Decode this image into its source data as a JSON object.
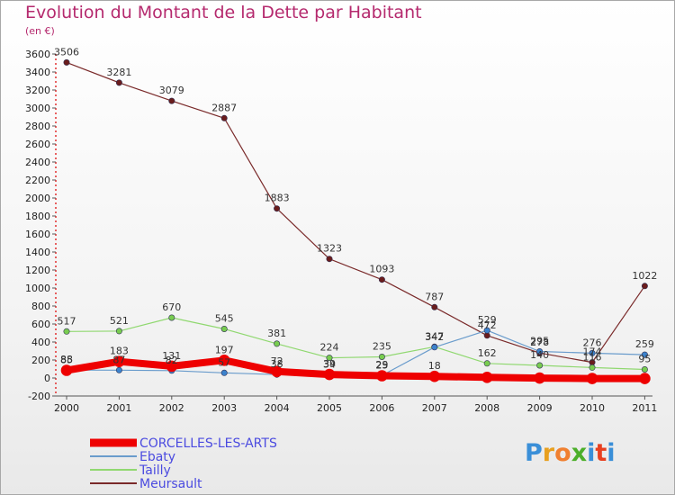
{
  "title": "Evolution du Montant de la Dette par Habitant",
  "unit": "(en €)",
  "logo": [
    "P",
    "r",
    "o",
    "x",
    "i",
    "t",
    "i"
  ],
  "logo_colors": [
    "#3a8fd8",
    "#e8a020",
    "#f08030",
    "#4caf2a",
    "#3a8fd8",
    "#e84020",
    "#3a8fd8"
  ],
  "chart_data": {
    "type": "line",
    "x": [
      "2000",
      "2001",
      "2002",
      "2003",
      "2004",
      "2005",
      "2006",
      "2007",
      "2008",
      "2009",
      "2010",
      "2011"
    ],
    "ylim": [
      -200,
      3600
    ],
    "yticks": [
      -200,
      0,
      200,
      400,
      600,
      800,
      1000,
      1200,
      1400,
      1600,
      1800,
      2000,
      2200,
      2400,
      2600,
      2800,
      3000,
      3200,
      3400,
      3600
    ],
    "grid": false,
    "legend_position": "bottom-left",
    "series": [
      {
        "name": "Meursault",
        "color": "#7a2a2a",
        "width": 1.2,
        "marker": "#6a1c1c",
        "values": [
          3506,
          3281,
          3079,
          2887,
          1883,
          1323,
          1093,
          787,
          472,
          278,
          174,
          1022
        ],
        "labels": [
          "3506",
          "3281",
          "3079",
          "2887",
          "1883",
          "1323",
          "1093",
          "787",
          "472",
          "278",
          "174",
          "1022"
        ]
      },
      {
        "name": "Tailly",
        "color": "#90d870",
        "width": 1.2,
        "marker": "#78cc50",
        "values": [
          517,
          521,
          670,
          545,
          381,
          224,
          235,
          347,
          162,
          140,
          116,
          95
        ],
        "labels": [
          "517",
          "521",
          "670",
          "545",
          "381",
          "224",
          "235",
          "347",
          "162",
          "140",
          "116",
          "95"
        ]
      },
      {
        "name": "Ebaty",
        "color": "#6a9ccc",
        "width": 1.2,
        "marker": "#3c82cc",
        "values": [
          88,
          87,
          82,
          57,
          38,
          34,
          29,
          342,
          529,
          295,
          276,
          259
        ],
        "labels": [
          "88",
          "87",
          "82",
          "57",
          "38",
          "34",
          "29",
          "342",
          "529",
          "295",
          "276",
          "259"
        ]
      },
      {
        "name": "CORCELLES-LES-ARTS",
        "color": "#ee0000",
        "width": 8,
        "marker": "#ee0000",
        "values": [
          85,
          183,
          131,
          197,
          72,
          39,
          25,
          18,
          7,
          -1,
          -6,
          -6
        ],
        "labels": [
          "85",
          "183",
          "131",
          "197",
          "72",
          "39",
          "25",
          "18",
          "",
          "",
          "",
          ""
        ]
      }
    ]
  }
}
